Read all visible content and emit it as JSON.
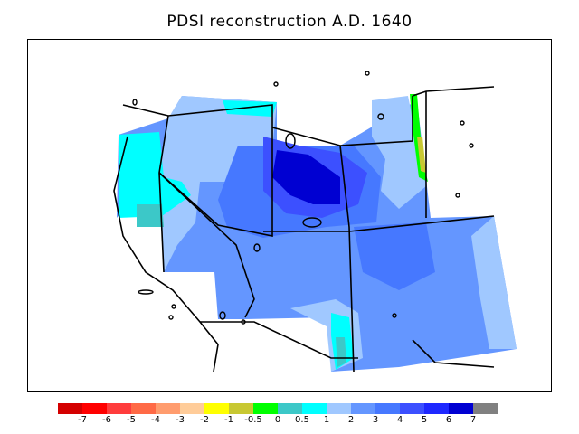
{
  "title": "PDSI reconstruction A.D. 1640",
  "legend": {
    "colors": [
      "#d40000",
      "#ff0000",
      "#ff3c3c",
      "#ff6a46",
      "#ff9c6e",
      "#ffcc99",
      "#ffff00",
      "#c8c832",
      "#00ff00",
      "#3cc8c8",
      "#00ffff",
      "#a0c8ff",
      "#6496ff",
      "#4678ff",
      "#3c50ff",
      "#1e28ff",
      "#0000d2",
      "#808080"
    ],
    "labels": [
      "-7",
      "-6",
      "-5",
      "-4",
      "-3",
      "-2",
      "-1",
      "-0.5",
      "0",
      "0.5",
      "1",
      "2",
      "3",
      "4",
      "5",
      "6",
      "7"
    ]
  },
  "map": {
    "colors": {
      "cyan": "#00ffff",
      "teal": "#3cc8c8",
      "light_blue": "#a0c8ff",
      "medium_blue": "#6496ff",
      "blue": "#4678ff",
      "royal_blue": "#3c50ff",
      "deep_blue": "#0000d2",
      "green": "#00ff00",
      "olive": "#c8c832",
      "yellow": "#ffff00"
    }
  }
}
